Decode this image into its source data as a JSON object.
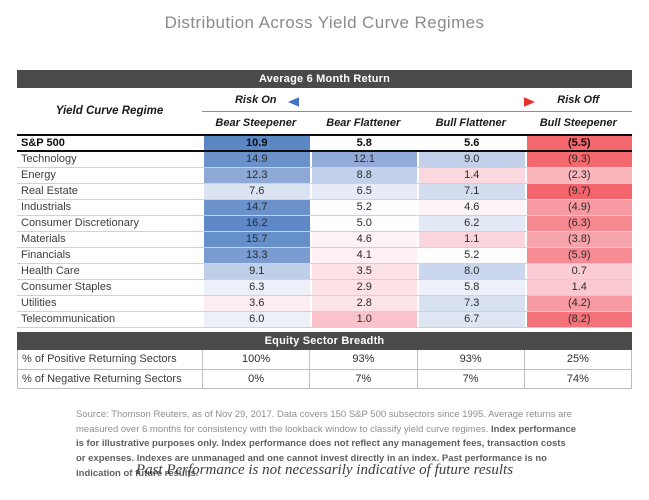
{
  "title": "Distribution Across Yield Curve Regimes",
  "sections": {
    "returns_header": "Average 6 Month Return",
    "breadth_header": "Equity Sector Breadth"
  },
  "colors": {
    "dark_bar_bg": "#4a4a4a",
    "arrow_blue": "#4472c4",
    "arrow_red": "#e8302e",
    "positive_strong_blue": "#5b87c5",
    "negative_strong_red": "#f4686e"
  },
  "matrix": {
    "corner_label": "Yield Curve Regime",
    "risk_on": "Risk On",
    "risk_off": "Risk Off",
    "columns": [
      "Bear Steepener",
      "Bear Flattener",
      "Bull Flattener",
      "Bull Steepener"
    ],
    "rows": [
      {
        "name": "S&P 500",
        "bold": true,
        "values": [
          "10.9",
          "5.8",
          "5.6",
          "(5.5)"
        ],
        "colors": [
          "#5b87c5",
          "#fefeff",
          "#fefeff",
          "#f4686e"
        ]
      },
      {
        "name": "Technology",
        "bold": false,
        "values": [
          "14.9",
          "12.1",
          "9.0",
          "(9.3)"
        ],
        "colors": [
          "#6b92cb",
          "#92abd8",
          "#c2d0ea",
          "#f4696e"
        ]
      },
      {
        "name": "Energy",
        "bold": false,
        "values": [
          "12.3",
          "8.8",
          "1.4",
          "(2.3)"
        ],
        "colors": [
          "#8ea9d6",
          "#c2d0ea",
          "#fbd8de",
          "#f9b6bd"
        ]
      },
      {
        "name": "Real Estate",
        "bold": false,
        "values": [
          "7.6",
          "6.5",
          "7.1",
          "(9.7)"
        ],
        "colors": [
          "#dbe3f3",
          "#e7ebf7",
          "#d3ddf0",
          "#f4656b"
        ]
      },
      {
        "name": "Industrials",
        "bold": false,
        "values": [
          "14.7",
          "5.2",
          "4.6",
          "(4.9)"
        ],
        "colors": [
          "#6b92cb",
          "#fdfdff",
          "#fcf4f7",
          "#f79aa2"
        ]
      },
      {
        "name": "Consumer Discretionary",
        "bold": false,
        "values": [
          "16.2",
          "5.0",
          "6.2",
          "(6.3)"
        ],
        "colors": [
          "#5e88c7",
          "#fefeff",
          "#e2e8f5",
          "#f68890"
        ]
      },
      {
        "name": "Materials",
        "bold": false,
        "values": [
          "15.7",
          "4.6",
          "1.1",
          "(3.8)"
        ],
        "colors": [
          "#6590c9",
          "#fdf3f6",
          "#fbd5db",
          "#f8a4ac"
        ]
      },
      {
        "name": "Financials",
        "bold": false,
        "values": [
          "13.3",
          "4.1",
          "5.2",
          "(5.9)"
        ],
        "colors": [
          "#7b9cd1",
          "#fdeff3",
          "#fefeff",
          "#f68b93"
        ]
      },
      {
        "name": "Health Care",
        "bold": false,
        "values": [
          "9.1",
          "3.5",
          "8.0",
          "0.7"
        ],
        "colors": [
          "#bfcee9",
          "#fce2e7",
          "#cbd7ee",
          "#fbccd3"
        ]
      },
      {
        "name": "Consumer Staples",
        "bold": false,
        "values": [
          "6.3",
          "2.9",
          "5.8",
          "1.4"
        ],
        "colors": [
          "#edf0f9",
          "#fce2e7",
          "#eff1fa",
          "#fbc9d0"
        ]
      },
      {
        "name": "Utilities",
        "bold": false,
        "values": [
          "3.6",
          "2.8",
          "7.3",
          "(4.2)"
        ],
        "colors": [
          "#fdedf1",
          "#fce4e9",
          "#d8e1f2",
          "#f79aa2"
        ]
      },
      {
        "name": "Telecommunication",
        "bold": false,
        "values": [
          "6.0",
          "1.0",
          "6.7",
          "(8.2)"
        ],
        "colors": [
          "#edf0f9",
          "#fac2ca",
          "#dee6f4",
          "#f4737a"
        ]
      }
    ]
  },
  "breadth": {
    "rows": [
      {
        "name": "% of Positive Returning Sectors",
        "values": [
          "100%",
          "93%",
          "93%",
          "25%"
        ]
      },
      {
        "name": "% of Negative Returning Sectors",
        "values": [
          "0%",
          "7%",
          "7%",
          "74%"
        ]
      }
    ]
  },
  "disclaimer": {
    "normal": "Source: Thomson Reuters, as of Nov 29, 2017. Data covers 150 S&P 500 subsectors since 1995. Average returns are measured over 6 months for consistency with the lookback window to classify yield curve regimes. ",
    "bold": "Index performance is for illustrative purposes only. Index performance does not reflect any management fees, transaction costs or expenses. Indexes are unmanaged and one cannot invest directly in an index. Past performance is no indication of future results."
  },
  "footer": "Past Performance is not necessarily indicative of future results",
  "chart_data": {
    "type": "heatmap",
    "title": "Distribution Across Yield Curve Regimes",
    "subtitle": "Average 6 Month Return",
    "columns": [
      "Bear Steepener",
      "Bear Flattener",
      "Bull Flattener",
      "Bull Steepener"
    ],
    "rows": [
      "S&P 500",
      "Technology",
      "Energy",
      "Real Estate",
      "Industrials",
      "Consumer Discretionary",
      "Materials",
      "Financials",
      "Health Care",
      "Consumer Staples",
      "Utilities",
      "Telecommunication"
    ],
    "values": [
      [
        10.9,
        5.8,
        5.6,
        -5.5
      ],
      [
        14.9,
        12.1,
        9.0,
        -9.3
      ],
      [
        12.3,
        8.8,
        1.4,
        -2.3
      ],
      [
        7.6,
        6.5,
        7.1,
        -9.7
      ],
      [
        14.7,
        5.2,
        4.6,
        -4.9
      ],
      [
        16.2,
        5.0,
        6.2,
        -6.3
      ],
      [
        15.7,
        4.6,
        1.1,
        -3.8
      ],
      [
        13.3,
        4.1,
        5.2,
        -5.9
      ],
      [
        9.1,
        3.5,
        8.0,
        0.7
      ],
      [
        6.3,
        2.9,
        5.8,
        1.4
      ],
      [
        3.6,
        2.8,
        7.3,
        -4.2
      ],
      [
        6.0,
        1.0,
        6.7,
        -8.2
      ]
    ],
    "breadth": {
      "positive_returning_sectors_pct": [
        100,
        93,
        93,
        25
      ],
      "negative_returning_sectors_pct": [
        0,
        7,
        7,
        74
      ]
    },
    "colormap": "diverging blue (positive) to red (negative)",
    "risk_axis": {
      "left": "Risk On",
      "right": "Risk Off"
    }
  }
}
